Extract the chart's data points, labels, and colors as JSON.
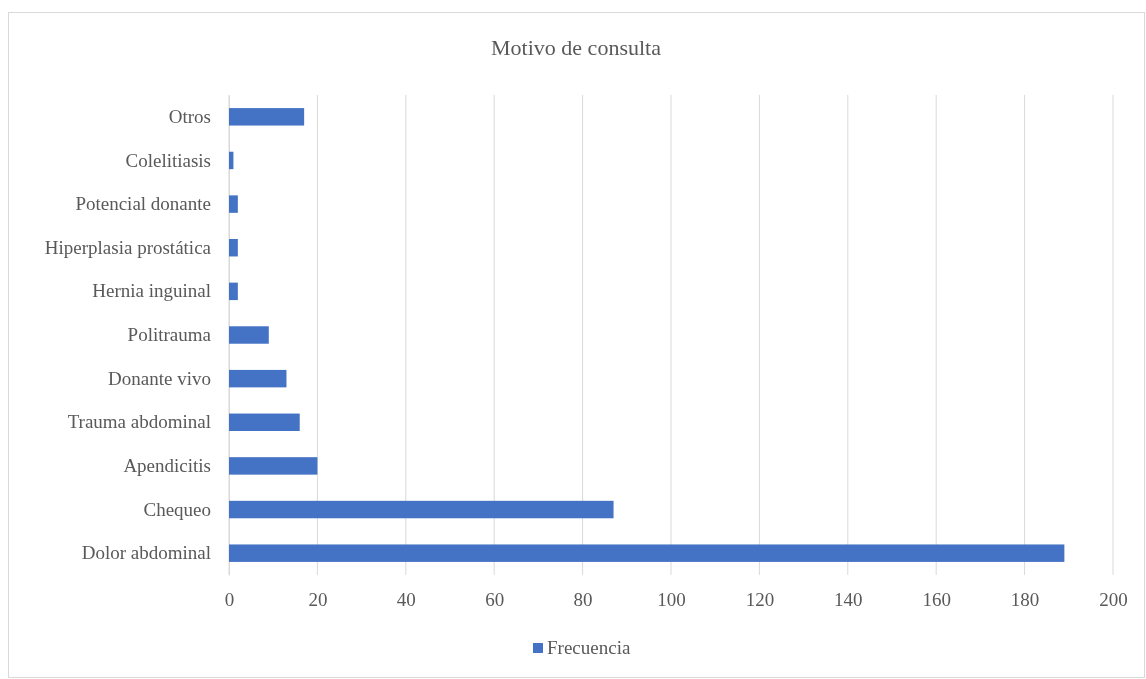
{
  "chart_data": {
    "type": "bar",
    "orientation": "horizontal",
    "title": "Motivo de consulta",
    "categories": [
      "Otros",
      "Colelitiasis",
      "Potencial donante",
      "Hiperplasia prostática",
      "Hernia inguinal",
      "Politrauma",
      "Donante vivo",
      "Trauma abdominal",
      "Apendicitis",
      "Chequeo",
      "Dolor abdominal"
    ],
    "series": [
      {
        "name": "Frecuencia",
        "color": "#4472c4",
        "values": [
          17,
          1,
          2,
          2,
          2,
          9,
          13,
          16,
          20,
          87,
          189
        ]
      }
    ],
    "xlim": [
      0,
      200
    ],
    "xticks": [
      0,
      20,
      40,
      60,
      80,
      100,
      120,
      140,
      160,
      180,
      200
    ],
    "grid": "x",
    "legend": "bottom"
  }
}
